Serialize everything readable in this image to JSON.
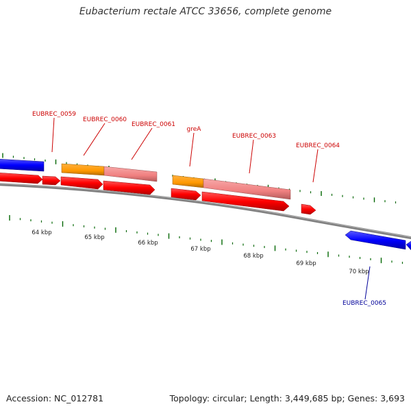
{
  "title": "Eubacterium rectale ATCC 33656, complete genome",
  "footer": {
    "accession": "Accession: NC_012781",
    "topology": "Topology: circular; Length: 3,449,685 bp; Genes: 3,693"
  },
  "scale": {
    "labels": [
      "64 kbp",
      "65 kbp",
      "66 kbp",
      "67 kbp",
      "68 kbp",
      "69 kbp",
      "70 kbp"
    ]
  },
  "genes": [
    {
      "label": "EUBREC_0059",
      "strand": "forward",
      "label_color": "#cc0000"
    },
    {
      "label": "EUBREC_0060",
      "strand": "forward",
      "label_color": "#cc0000"
    },
    {
      "label": "EUBREC_0061",
      "strand": "forward",
      "label_color": "#cc0000"
    },
    {
      "label": "greA",
      "strand": "forward",
      "label_color": "#cc0000"
    },
    {
      "label": "EUBREC_0063",
      "strand": "forward",
      "label_color": "#cc0000"
    },
    {
      "label": "EUBREC_0064",
      "strand": "forward",
      "label_color": "#cc0000"
    },
    {
      "label": "EUBREC_0065",
      "strand": "reverse",
      "label_color": "#000099"
    }
  ],
  "colors": {
    "forward_cds": "#ff0000",
    "reverse_cds": "#0000ff",
    "orange_feature": "#ff9900",
    "pink_feature": "#f08080",
    "backbone": "#808080",
    "ticks": "#006600"
  }
}
